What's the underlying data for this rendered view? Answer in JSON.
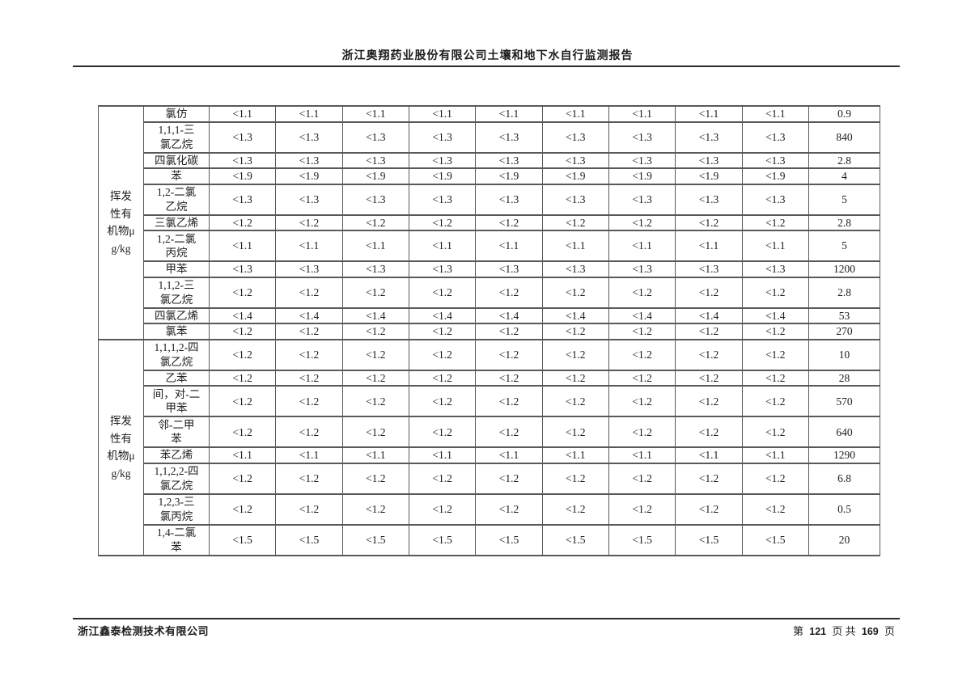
{
  "header": {
    "title": "浙江奥翔药业股份有限公司土壤和地下水自行监测报告"
  },
  "footer": {
    "company": "浙江鑫泰检测技术有限公司",
    "page_label": {
      "prefix": "第",
      "current_page": "121",
      "middle": "页 共",
      "total_pages": "169",
      "suffix": "页"
    }
  },
  "table": {
    "sample_result_columns": 9,
    "groups": [
      {
        "label": "挥发性有机物",
        "unit": "μg/kg",
        "rows": [
          {
            "name": "氯仿",
            "detect": "<1.1",
            "limit": "0.9"
          },
          {
            "name": "1,1,1-三\n氯乙烷",
            "detect": "<1.3",
            "limit": "840"
          },
          {
            "name": "四氯化碳",
            "detect": "<1.3",
            "limit": "2.8"
          },
          {
            "name": "苯",
            "detect": "<1.9",
            "limit": "4"
          },
          {
            "name": "1,2-二氯\n乙烷",
            "detect": "<1.3",
            "limit": "5"
          },
          {
            "name": "三氯乙烯",
            "detect": "<1.2",
            "limit": "2.8"
          },
          {
            "name": "1,2-二氯\n丙烷",
            "detect": "<1.1",
            "limit": "5"
          },
          {
            "name": "甲苯",
            "detect": "<1.3",
            "limit": "1200"
          },
          {
            "name": "1,1,2-三\n氯乙烷",
            "detect": "<1.2",
            "limit": "2.8"
          },
          {
            "name": "四氯乙烯",
            "detect": "<1.4",
            "limit": "53"
          },
          {
            "name": "氯苯",
            "detect": "<1.2",
            "limit": "270"
          }
        ]
      },
      {
        "label": "挥发性有机物",
        "unit": "μg/kg",
        "rows": [
          {
            "name": "1,1,1,2-四\n氯乙烷",
            "detect": "<1.2",
            "limit": "10"
          },
          {
            "name": "乙苯",
            "detect": "<1.2",
            "limit": "28"
          },
          {
            "name": "间，对-二\n甲苯",
            "detect": "<1.2",
            "limit": "570"
          },
          {
            "name": "邻-二甲\n苯",
            "detect": "<1.2",
            "limit": "640"
          },
          {
            "name": "苯乙烯",
            "detect": "<1.1",
            "limit": "1290"
          },
          {
            "name": "1,1,2,2-四\n氯乙烷",
            "detect": "<1.2",
            "limit": "6.8"
          },
          {
            "name": "1,2,3-三\n氯丙烷",
            "detect": "<1.2",
            "limit": "0.5"
          },
          {
            "name": "1,4-二氯\n苯",
            "detect": "<1.5",
            "limit": "20"
          }
        ]
      }
    ]
  }
}
